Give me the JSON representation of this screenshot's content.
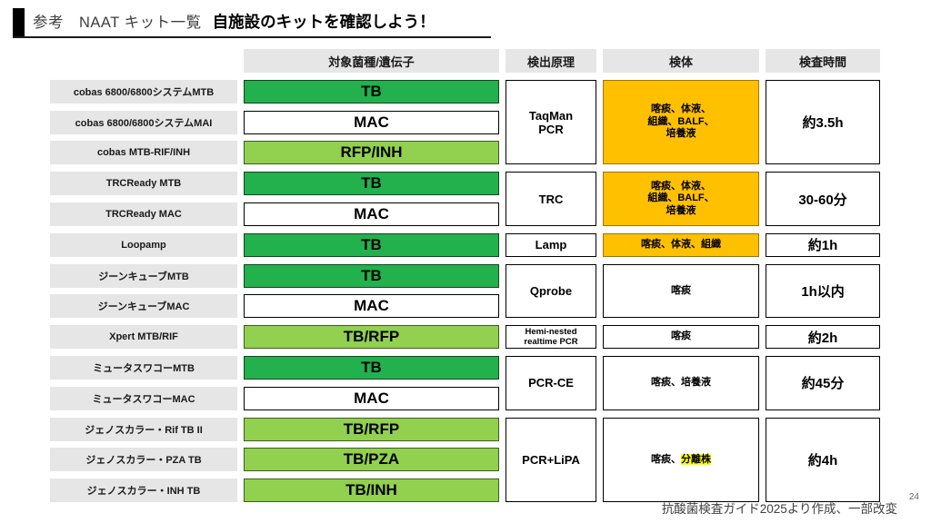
{
  "title": {
    "prefix": "参考　NAAT キット一覧",
    "emphasis": "自施設のキットを確認しよう！"
  },
  "table": {
    "columns": {
      "target": "対象菌種/遺伝子",
      "principle": "検出原理",
      "specimen": "検体",
      "time": "検査時間"
    },
    "kits": [
      {
        "name": "cobas 6800/6800システムMTB",
        "target": "TB",
        "target_style": "green"
      },
      {
        "name": "cobas 6800/6800システムMAI",
        "target": "MAC",
        "target_style": "white"
      },
      {
        "name": "cobas MTB-RIF/INH",
        "target": "RFP/INH",
        "target_style": "light"
      },
      {
        "name": "TRCReady MTB",
        "target": "TB",
        "target_style": "green"
      },
      {
        "name": "TRCReady MAC",
        "target": "MAC",
        "target_style": "white"
      },
      {
        "name": "Loopamp",
        "target": "TB",
        "target_style": "green"
      },
      {
        "name": "ジーンキューブMTB",
        "target": "TB",
        "target_style": "green"
      },
      {
        "name": "ジーンキューブMAC",
        "target": "MAC",
        "target_style": "white"
      },
      {
        "name": "Xpert MTB/RIF",
        "target": "TB/RFP",
        "target_style": "light"
      },
      {
        "name": "ミュータスワコーMTB",
        "target": "TB",
        "target_style": "green"
      },
      {
        "name": "ミュータスワコーMAC",
        "target": "MAC",
        "target_style": "white"
      },
      {
        "name": "ジェノスカラー・Rif TB II",
        "target": "TB/RFP",
        "target_style": "light"
      },
      {
        "name": "ジェノスカラー・PZA TB",
        "target": "TB/PZA",
        "target_style": "light"
      },
      {
        "name": "ジェノスカラー・INH TB",
        "target": "TB/INH",
        "target_style": "light"
      }
    ],
    "groups": [
      {
        "row_start": 1,
        "row_span": 3,
        "principle_lines": [
          "TaqMan",
          "PCR"
        ],
        "principle_small": false,
        "specimen_style": "orange",
        "specimen_lines": [
          [
            {
              "text": "喀痰、体液、"
            }
          ],
          [
            {
              "text": "組織、BALF、"
            }
          ],
          [
            {
              "text": "培養液"
            }
          ]
        ],
        "time": "約3.5h"
      },
      {
        "row_start": 4,
        "row_span": 2,
        "principle_lines": [
          "TRC"
        ],
        "principle_small": false,
        "specimen_style": "orange",
        "specimen_lines": [
          [
            {
              "text": "喀痰、体液、"
            }
          ],
          [
            {
              "text": "組織、BALF、"
            }
          ],
          [
            {
              "text": "培養液"
            }
          ]
        ],
        "time": "30-60分"
      },
      {
        "row_start": 6,
        "row_span": 1,
        "principle_lines": [
          "Lamp"
        ],
        "principle_small": false,
        "specimen_style": "orange",
        "specimen_lines": [
          [
            {
              "text": "喀痰、体液、組織"
            }
          ]
        ],
        "time": "約1h"
      },
      {
        "row_start": 7,
        "row_span": 2,
        "principle_lines": [
          "Qprobe"
        ],
        "principle_small": false,
        "specimen_style": "white",
        "specimen_lines": [
          [
            {
              "text": "喀痰"
            }
          ]
        ],
        "time": "1h以内"
      },
      {
        "row_start": 9,
        "row_span": 1,
        "principle_lines": [
          "Hemi-nested",
          "realtime PCR"
        ],
        "principle_small": true,
        "specimen_style": "white",
        "specimen_lines": [
          [
            {
              "text": "喀痰"
            }
          ]
        ],
        "time": "約2h"
      },
      {
        "row_start": 10,
        "row_span": 2,
        "principle_lines": [
          "PCR-CE"
        ],
        "principle_small": false,
        "specimen_style": "white",
        "specimen_lines": [
          [
            {
              "text": "喀痰、培養液"
            }
          ]
        ],
        "time": "約45分"
      },
      {
        "row_start": 12,
        "row_span": 3,
        "principle_lines": [
          "PCR+LiPA"
        ],
        "principle_small": false,
        "specimen_style": "white",
        "specimen_lines": [
          [
            {
              "text": "喀痰、"
            },
            {
              "text": "分離株",
              "highlight": true
            }
          ]
        ],
        "time": "約4h"
      }
    ]
  },
  "footer": {
    "source": "抗酸菌検査ガイド2025より作成、一部改変",
    "page": "24"
  },
  "colors": {
    "dark_green": "#22B14C",
    "light_green": "#92D050",
    "orange": "#FFC000",
    "highlight_yellow": "#FFFF00",
    "label_gray": "#E7E6E6",
    "accent_bar": "#000000"
  }
}
